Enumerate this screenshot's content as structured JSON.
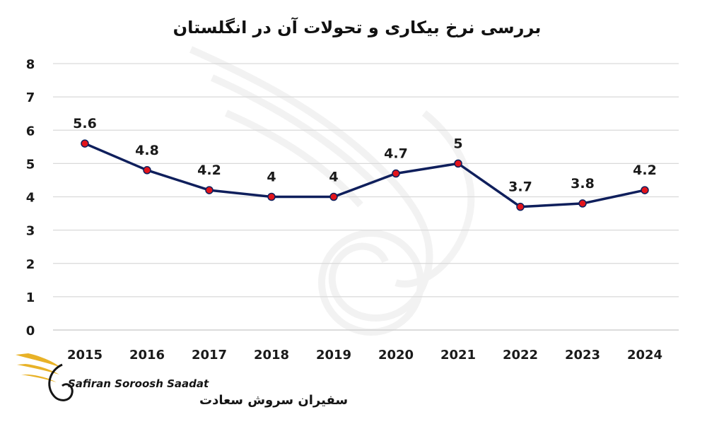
{
  "chart_data": {
    "type": "line",
    "title": "بررسی نرخ بیکاری و تحولات آن در انگلستان",
    "xlabel": "",
    "ylabel": "",
    "categories": [
      "2015",
      "2016",
      "2017",
      "2018",
      "2019",
      "2020",
      "2021",
      "2022",
      "2023",
      "2024"
    ],
    "series": [
      {
        "values": [
          5.6,
          4.8,
          4.2,
          4,
          4,
          4.7,
          5,
          3.7,
          3.8,
          4.2
        ],
        "data_labels": [
          "5.6",
          "4.8",
          "4.2",
          "4",
          "4",
          "4.7",
          "5",
          "3.7",
          "3.8",
          "4.2"
        ]
      }
    ],
    "ylim": [
      0,
      8
    ],
    "yticks": [
      "0",
      "1",
      "2",
      "3",
      "4",
      "5",
      "6",
      "7",
      "8"
    ],
    "grid": true,
    "legend": "none",
    "colors": {
      "line": "#0f1f5c",
      "marker_fill": "#e3141b",
      "marker_stroke": "#0f1f5c",
      "grid": "#d9d9d9",
      "logo_gold": "#e8b227"
    }
  },
  "logo": {
    "name_en": "Safiran Soroosh Saadat",
    "name_fa": "سفیران سروش سعادت",
    "icon": "bird-wing-icon"
  }
}
